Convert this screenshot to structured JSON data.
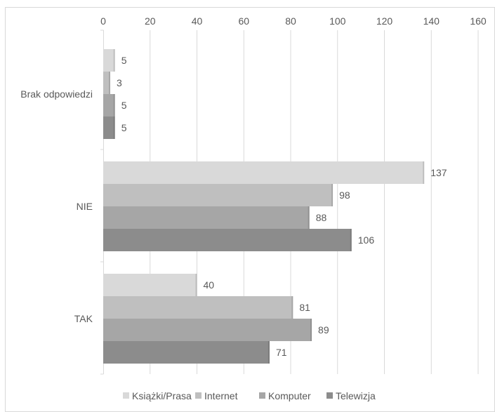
{
  "chart_data": {
    "type": "bar",
    "orientation": "horizontal",
    "title": "",
    "xlabel": "",
    "ylabel": "",
    "categories": [
      "Brak odpowiedzi",
      "NIE",
      "TAK"
    ],
    "series": [
      {
        "name": "Książki/Prasa",
        "color": "#d9d9d9",
        "values": [
          5,
          137,
          40
        ]
      },
      {
        "name": "Internet",
        "color": "#bfbfbf",
        "values": [
          3,
          98,
          81
        ]
      },
      {
        "name": "Komputer",
        "color": "#a6a6a6",
        "values": [
          5,
          88,
          89
        ]
      },
      {
        "name": "Telewizja",
        "color": "#8c8c8c",
        "values": [
          5,
          106,
          71
        ]
      }
    ],
    "xlim": [
      0,
      160
    ],
    "xticks": [
      0,
      20,
      40,
      60,
      80,
      100,
      120,
      140,
      160
    ],
    "x_axis_position": "top",
    "grid": true,
    "data_labels": true,
    "legend_position": "bottom"
  }
}
